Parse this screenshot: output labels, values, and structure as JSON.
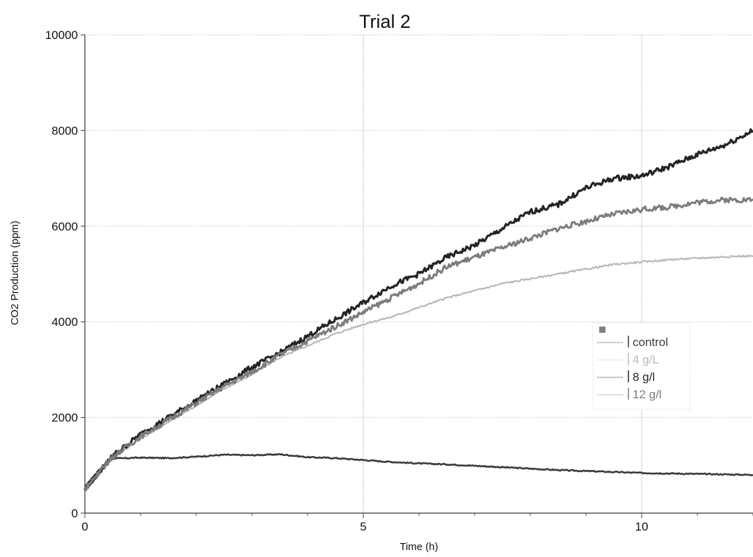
{
  "chart_data": {
    "type": "line",
    "title": "Trial 2",
    "xlabel": "Time (h)",
    "ylabel": "CO2 Production (ppm)",
    "xlim": [
      0,
      12
    ],
    "ylim": [
      0,
      10000
    ],
    "x_ticks": [
      "0",
      "5",
      "10"
    ],
    "y_ticks": [
      "0",
      "2000",
      "4000",
      "6000",
      "8000",
      "10000"
    ],
    "grid": "dotted",
    "legend_position": "right",
    "series": [
      {
        "name": "control",
        "color": "#3a3a3a",
        "x": [
          0,
          0.25,
          0.5,
          1,
          1.5,
          2,
          2.5,
          3,
          3.5,
          4,
          4.5,
          5,
          5.5,
          6,
          6.5,
          7,
          7.5,
          8,
          8.5,
          9,
          9.5,
          10,
          10.5,
          11,
          11.5,
          12
        ],
        "y": [
          550,
          900,
          1140,
          1160,
          1150,
          1180,
          1220,
          1210,
          1230,
          1170,
          1150,
          1110,
          1070,
          1040,
          1020,
          990,
          960,
          930,
          900,
          880,
          860,
          840,
          830,
          820,
          810,
          800
        ]
      },
      {
        "name": "4 g/L",
        "color": "#b8b8b8",
        "x": [
          0,
          0.25,
          0.5,
          1,
          1.5,
          2,
          2.5,
          3,
          3.5,
          4,
          4.5,
          5,
          5.5,
          6,
          6.5,
          7,
          7.5,
          8,
          8.5,
          9,
          9.5,
          10,
          10.5,
          11,
          11.5,
          12
        ],
        "y": [
          500,
          850,
          1150,
          1550,
          1900,
          2250,
          2600,
          2900,
          3250,
          3500,
          3750,
          3950,
          4100,
          4300,
          4500,
          4650,
          4800,
          4900,
          5000,
          5100,
          5200,
          5250,
          5300,
          5330,
          5360,
          5380
        ]
      },
      {
        "name": "8 g/l",
        "color": "#242424",
        "x": [
          0,
          0.25,
          0.5,
          1,
          1.5,
          2,
          2.5,
          3,
          3.5,
          4,
          4.5,
          5,
          5.5,
          6,
          6.5,
          7,
          7.5,
          8,
          8.5,
          9,
          9.5,
          10,
          10.5,
          11,
          11.5,
          12
        ],
        "y": [
          500,
          850,
          1200,
          1650,
          2000,
          2350,
          2700,
          3050,
          3350,
          3700,
          4050,
          4400,
          4750,
          5000,
          5350,
          5600,
          5950,
          6300,
          6450,
          6800,
          7000,
          7050,
          7250,
          7500,
          7700,
          8000
        ]
      },
      {
        "name": "12 g/l",
        "color": "#7c7c7c",
        "x": [
          0,
          0.25,
          0.5,
          1,
          1.5,
          2,
          2.5,
          3,
          3.5,
          4,
          4.5,
          5,
          5.5,
          6,
          6.5,
          7,
          7.5,
          8,
          8.5,
          9,
          9.5,
          10,
          10.5,
          11,
          11.5,
          12
        ],
        "y": [
          500,
          850,
          1180,
          1600,
          1950,
          2300,
          2650,
          2950,
          3300,
          3600,
          3900,
          4200,
          4500,
          4800,
          5150,
          5350,
          5550,
          5750,
          5950,
          6100,
          6250,
          6350,
          6400,
          6500,
          6550,
          6550
        ]
      }
    ]
  }
}
